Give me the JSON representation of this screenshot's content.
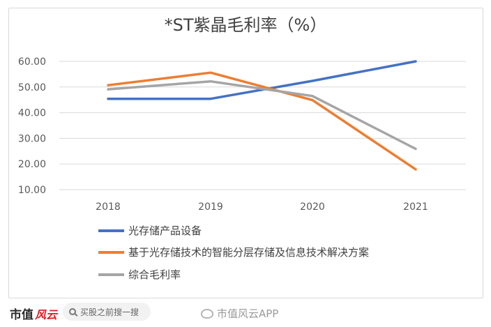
{
  "chart_data": {
    "type": "line",
    "title": "*ST紫晶毛利率（%）",
    "categories": [
      "2018",
      "2019",
      "2020",
      "2021"
    ],
    "ylim": [
      10,
      60
    ],
    "yticks": [
      "60.00",
      "50.00",
      "40.00",
      "30.00",
      "20.00",
      "10.00"
    ],
    "grid": true,
    "legend_position": "bottom",
    "series": [
      {
        "name": "光存储产品设备",
        "color": "#4472C4",
        "values": [
          45.4,
          45.4,
          52.4,
          60.0
        ]
      },
      {
        "name": "基于光存储技术的智能分层存储及信息技术解决方案",
        "color": "#ED7D31",
        "values": [
          50.7,
          55.6,
          44.9,
          17.9
        ]
      },
      {
        "name": "综合毛利率",
        "color": "#A5A5A5",
        "values": [
          49.1,
          52.2,
          46.5,
          25.9
        ]
      }
    ]
  },
  "footer": {
    "brand": "市值",
    "brand_script": "风云",
    "search_placeholder": "买股之前搜一搜",
    "weibo_label": "市值风云APP"
  }
}
